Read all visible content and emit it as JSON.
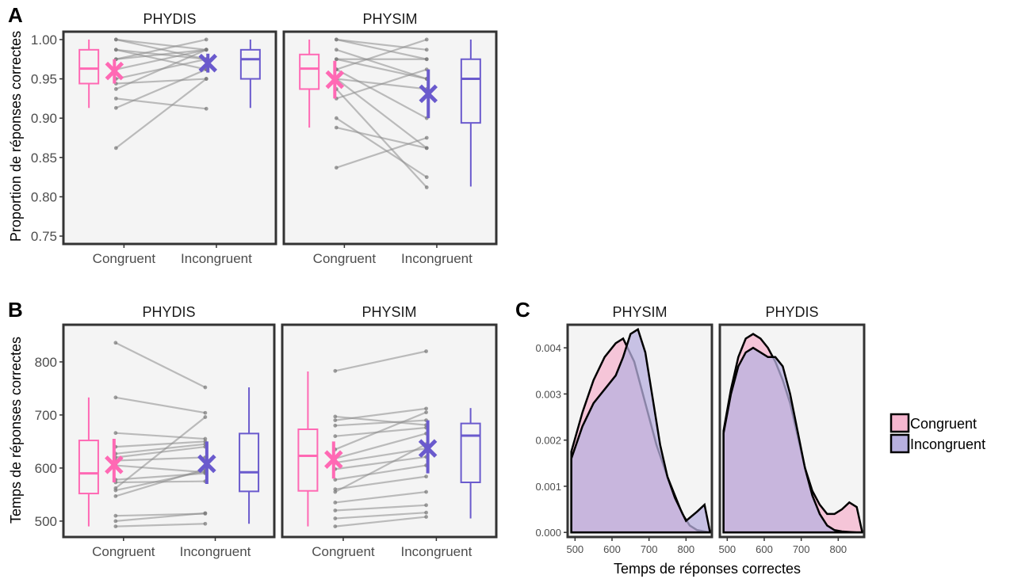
{
  "panel_tags": {
    "a": "A",
    "b": "B",
    "c": "C"
  },
  "colors": {
    "congruent": "#ff69b4",
    "incongruent": "#6a5acd",
    "pair_line": "#8c8c8c",
    "panel_bg": "#f4f4f4",
    "panel_border": "#333333",
    "density_congruent_fill": "#f5b6cf",
    "density_incongruent_fill": "#b8b0df",
    "density_overlap_fill": "#c9a6d8"
  },
  "chart_data": [
    {
      "id": "A",
      "type": "boxplot-paired",
      "ylabel": "Proportion de réponses correctes",
      "ylim": [
        0.74,
        1.01
      ],
      "yticks": [
        "0.75",
        "0.80",
        "0.85",
        "0.90",
        "0.95",
        "1.00"
      ],
      "categories": [
        "Congruent",
        "Incongruent"
      ],
      "facets": [
        {
          "name": "PHYDIS",
          "boxes": [
            {
              "category": "Congruent",
              "min": 0.913,
              "q1": 0.944,
              "median": 0.963,
              "q3": 0.987,
              "max": 1.0,
              "mean": 0.96,
              "ci": [
                0.944,
                0.975
              ]
            },
            {
              "category": "Incongruent",
              "min": 0.913,
              "q1": 0.95,
              "median": 0.975,
              "q3": 0.987,
              "max": 1.0,
              "mean": 0.97,
              "ci": [
                0.958,
                0.982
              ]
            }
          ],
          "pairs": [
            [
              0.862,
              0.95
            ],
            [
              0.913,
              0.962
            ],
            [
              0.925,
              0.912
            ],
            [
              0.937,
              0.987
            ],
            [
              0.944,
              0.95
            ],
            [
              0.95,
              0.975
            ],
            [
              0.962,
              0.987
            ],
            [
              0.975,
              1.0
            ],
            [
              0.987,
              0.975
            ],
            [
              1.0,
              0.987
            ],
            [
              0.987,
              0.962
            ],
            [
              1.0,
              0.975
            ],
            [
              0.975,
              0.987
            ]
          ]
        },
        {
          "name": "PHYSIM",
          "boxes": [
            {
              "category": "Congruent",
              "min": 0.888,
              "q1": 0.937,
              "median": 0.963,
              "q3": 0.981,
              "max": 1.0,
              "mean": 0.949,
              "ci": [
                0.925,
                0.973
              ]
            },
            {
              "category": "Incongruent",
              "min": 0.813,
              "q1": 0.894,
              "median": 0.95,
              "q3": 0.975,
              "max": 1.0,
              "mean": 0.931,
              "ci": [
                0.9,
                0.962
              ]
            }
          ],
          "pairs": [
            [
              0.837,
              0.875
            ],
            [
              0.888,
              0.862
            ],
            [
              0.9,
              0.825
            ],
            [
              0.937,
              0.812
            ],
            [
              0.95,
              0.862
            ],
            [
              0.962,
              0.9
            ],
            [
              0.975,
              0.95
            ],
            [
              0.975,
              0.975
            ],
            [
              0.987,
              0.95
            ],
            [
              1.0,
              0.975
            ],
            [
              1.0,
              0.987
            ],
            [
              0.962,
              1.0
            ],
            [
              0.925,
              0.962
            ],
            [
              0.95,
              0.937
            ]
          ]
        }
      ]
    },
    {
      "id": "B",
      "type": "boxplot-paired",
      "ylabel": "Temps de réponses correctes",
      "ylim": [
        470,
        870
      ],
      "yticks": [
        "500",
        "600",
        "700",
        "800"
      ],
      "categories": [
        "Congruent",
        "Incongruent"
      ],
      "facets": [
        {
          "name": "PHYDIS",
          "boxes": [
            {
              "category": "Congruent",
              "min": 490,
              "q1": 552,
              "median": 590,
              "q3": 652,
              "max": 733,
              "mean": 606,
              "ci": [
                573,
                655
              ]
            },
            {
              "category": "Incongruent",
              "min": 495,
              "q1": 556,
              "median": 592,
              "q3": 665,
              "max": 752,
              "mean": 608,
              "ci": [
                570,
                650
              ]
            }
          ],
          "pairs": [
            [
              490,
              495
            ],
            [
              500,
              515
            ],
            [
              510,
              514
            ],
            [
              547,
              598
            ],
            [
              558,
              594
            ],
            [
              573,
              575
            ],
            [
              578,
              590
            ],
            [
              605,
              592
            ],
            [
              614,
              620
            ],
            [
              620,
              640
            ],
            [
              627,
              645
            ],
            [
              640,
              650
            ],
            [
              666,
              655
            ],
            [
              733,
              704
            ],
            [
              836,
              752
            ],
            [
              562,
              696
            ]
          ]
        },
        {
          "name": "PHYSIM",
          "boxes": [
            {
              "category": "Congruent",
              "min": 490,
              "q1": 557,
              "median": 623,
              "q3": 673,
              "max": 782,
              "mean": 616,
              "ci": [
                580,
                650
              ]
            },
            {
              "category": "Incongruent",
              "min": 505,
              "q1": 573,
              "median": 661,
              "q3": 684,
              "max": 713,
              "mean": 637,
              "ci": [
                590,
                690
              ]
            }
          ],
          "pairs": [
            [
              490,
              508
            ],
            [
              505,
              516
            ],
            [
              520,
              530
            ],
            [
              535,
              555
            ],
            [
              560,
              584
            ],
            [
              578,
              605
            ],
            [
              598,
              621
            ],
            [
              610,
              637
            ],
            [
              618,
              665
            ],
            [
              635,
              705
            ],
            [
              660,
              676
            ],
            [
              690,
              712
            ],
            [
              697,
              681
            ],
            [
              783,
              820
            ],
            [
              555,
              645
            ],
            [
              680,
              690
            ]
          ]
        }
      ]
    },
    {
      "id": "C",
      "type": "area",
      "xlabel": "Temps de réponses correctes",
      "xlim": [
        480,
        870
      ],
      "ylim": [
        -0.0001,
        0.0045
      ],
      "xticks": [
        "500",
        "600",
        "700",
        "800"
      ],
      "yticks": [
        "0.000",
        "0.001",
        "0.002",
        "0.003",
        "0.004"
      ],
      "legend": {
        "position": "right",
        "entries": [
          "Congruent",
          "Incongruent"
        ]
      },
      "facets": [
        {
          "name": "PHYSIM",
          "series": [
            {
              "name": "Congruent",
              "x": [
                490,
                520,
                550,
                580,
                610,
                630,
                660,
                690,
                720,
                750,
                770,
                790,
                810,
                830,
                850,
                865
              ],
              "y": [
                0.00175,
                0.0026,
                0.0033,
                0.0038,
                0.0041,
                0.0042,
                0.0037,
                0.0028,
                0.0019,
                0.0012,
                0.0008,
                0.0004,
                0.00015,
                5e-05,
                2e-05,
                0.0
              ]
            },
            {
              "name": "Incongruent",
              "x": [
                490,
                520,
                550,
                580,
                610,
                630,
                650,
                670,
                690,
                710,
                730,
                750,
                770,
                800,
                830,
                850,
                865
              ],
              "y": [
                0.0016,
                0.0023,
                0.0028,
                0.0031,
                0.0034,
                0.0038,
                0.0043,
                0.0044,
                0.0039,
                0.0029,
                0.0019,
                0.0012,
                0.00075,
                0.00025,
                0.00045,
                0.0006,
                0.0
              ]
            }
          ]
        },
        {
          "name": "PHYDIS",
          "series": [
            {
              "name": "Congruent",
              "x": [
                490,
                510,
                530,
                550,
                570,
                590,
                610,
                630,
                650,
                670,
                690,
                710,
                730,
                750,
                770,
                790,
                810,
                830,
                850,
                865
              ],
              "y": [
                0.0022,
                0.0031,
                0.0038,
                0.0042,
                0.0043,
                0.0042,
                0.004,
                0.0037,
                0.0033,
                0.0028,
                0.0021,
                0.0014,
                0.0009,
                0.0006,
                0.0004,
                0.0004,
                0.0005,
                0.00065,
                0.00055,
                0.0
              ]
            },
            {
              "name": "Incongruent",
              "x": [
                490,
                510,
                530,
                550,
                570,
                590,
                610,
                630,
                650,
                670,
                690,
                710,
                730,
                750,
                770,
                790,
                810,
                830,
                850,
                865
              ],
              "y": [
                0.00215,
                0.003,
                0.0036,
                0.0039,
                0.004,
                0.0039,
                0.0038,
                0.0038,
                0.0036,
                0.003,
                0.0022,
                0.0014,
                0.0008,
                0.0004,
                0.00015,
                5e-05,
                2e-05,
                1e-05,
                0.0,
                0.0
              ]
            }
          ]
        }
      ]
    }
  ]
}
